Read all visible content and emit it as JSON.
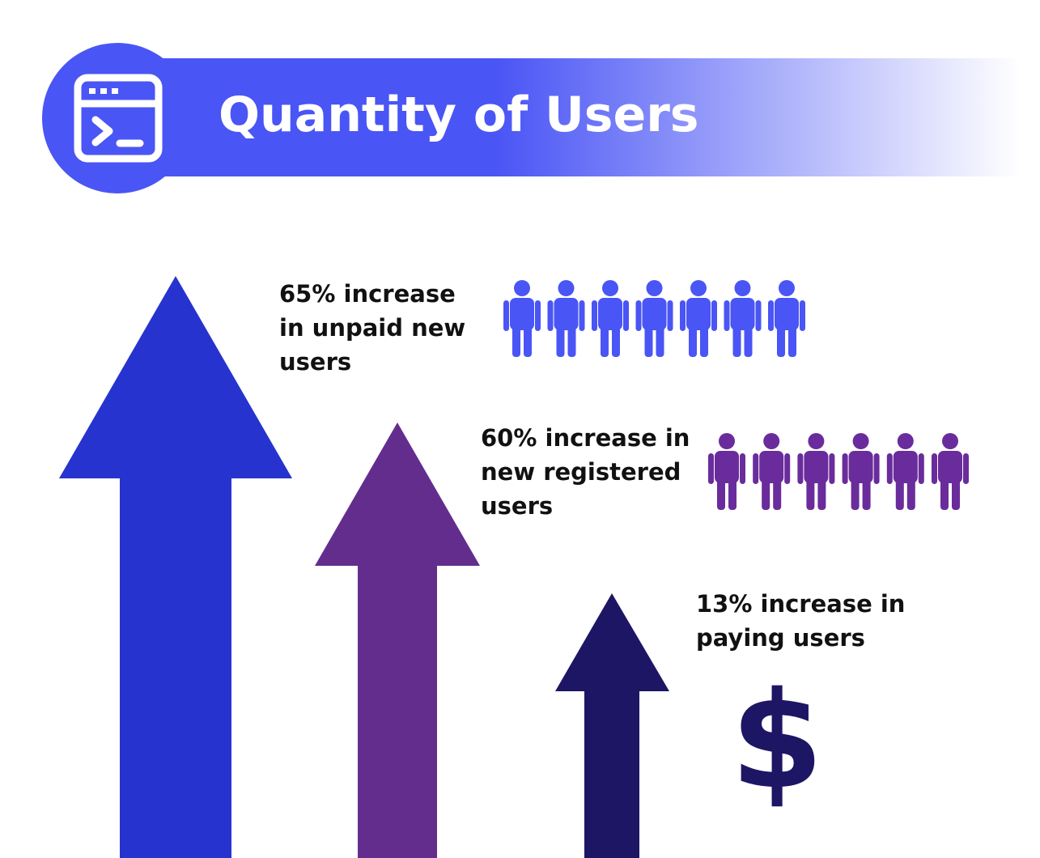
{
  "header": {
    "title": "Quantity of Users"
  },
  "items": [
    {
      "lines": [
        "65% increase",
        "in unpaid new",
        "users"
      ]
    },
    {
      "lines": [
        "60% increase in",
        "new registered",
        "users"
      ]
    },
    {
      "lines": [
        "13% increase in",
        "paying users"
      ],
      "symbol": "$"
    }
  ]
}
